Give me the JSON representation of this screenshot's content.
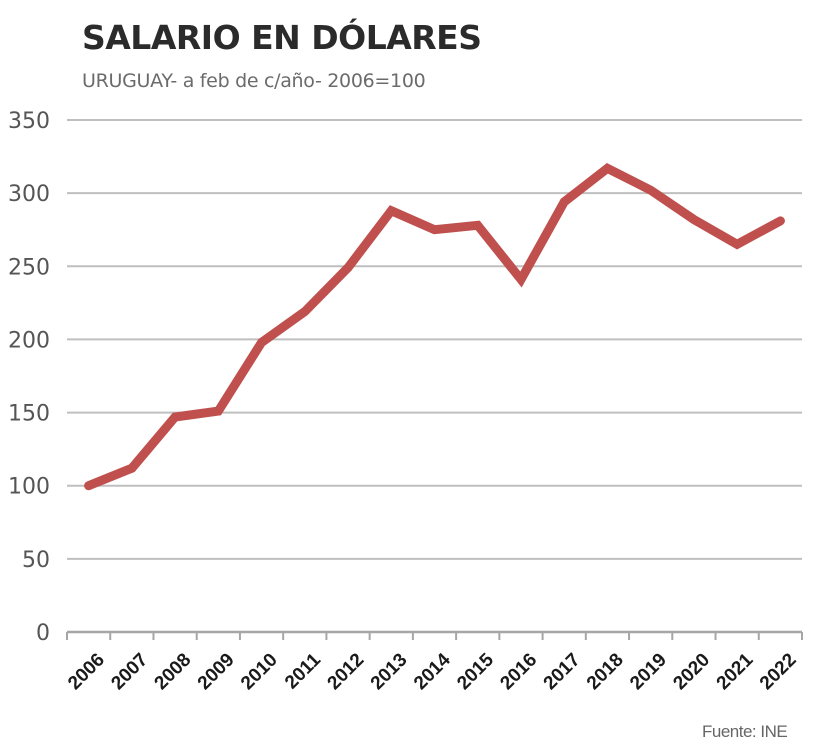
{
  "header": {
    "title": "SALARIO EN DÓLARES",
    "subtitle": "URUGUAY- a feb de c/año- 2006=100"
  },
  "footer": {
    "source": "Fuente: INE"
  },
  "colors": {
    "line": "#c0504d",
    "grid": "#bfbfbf",
    "axis": "#a6a6a6"
  },
  "chart_data": {
    "type": "line",
    "title": "SALARIO EN DÓLARES",
    "subtitle": "URUGUAY- a feb de c/año- 2006=100",
    "xlabel": "",
    "ylabel": "",
    "categories": [
      "2006",
      "2007",
      "2008",
      "2009",
      "2010",
      "2011",
      "2012",
      "2013",
      "2014",
      "2015",
      "2016",
      "2017",
      "2018",
      "2019",
      "2020",
      "2021",
      "2022"
    ],
    "series": [
      {
        "name": "Salario en dólares (2006=100)",
        "values": [
          100,
          112,
          147,
          151,
          198,
          219,
          249,
          288,
          275,
          278,
          241,
          294,
          317,
          302,
          282,
          265,
          281
        ]
      }
    ],
    "yticks": [
      0,
      50,
      100,
      150,
      200,
      250,
      300,
      350
    ],
    "ylim": [
      0,
      350
    ],
    "grid": true,
    "legend": "none",
    "source": "Fuente: INE"
  }
}
